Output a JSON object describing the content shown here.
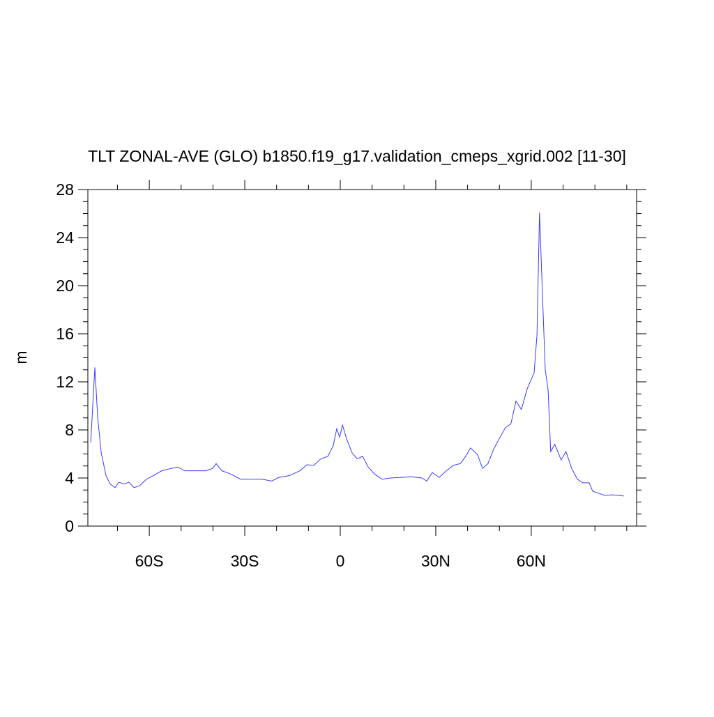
{
  "chart_data": {
    "type": "line",
    "title": "TLT ZONAL-AVE (GLO) b1850.f19_g17.validation_cmeps_xgrid.002 [11-30]",
    "y_label": "m",
    "x": [
      -78.4,
      -77.1,
      -76.2,
      -75.1,
      -73.6,
      -72.3,
      -70.7,
      -69.6,
      -67.9,
      -66.4,
      -64.8,
      -63.1,
      -60.9,
      -58.7,
      -56.1,
      -53.9,
      -51.0,
      -48.8,
      -45.5,
      -42.3,
      -40.1,
      -39.0,
      -37.2,
      -34.6,
      -31.3,
      -28.0,
      -24.7,
      -21.5,
      -19.3,
      -16.0,
      -12.7,
      -10.5,
      -8.3,
      -6.1,
      -3.9,
      -2.2,
      -1.1,
      -0.2,
      0.7,
      2.0,
      3.7,
      5.3,
      7.0,
      8.8,
      10.7,
      13.1,
      15.8,
      19.1,
      22.3,
      25.6,
      27.2,
      28.9,
      31.1,
      33.3,
      35.5,
      37.7,
      39.4,
      40.9,
      43.1,
      44.7,
      46.4,
      48.2,
      49.9,
      51.9,
      53.6,
      55.2,
      56.9,
      58.7,
      60.0,
      60.9,
      61.8,
      62.6,
      63.5,
      64.4,
      65.3,
      66.1,
      67.4,
      69.4,
      70.9,
      72.7,
      74.5,
      76.2,
      78.2,
      79.3,
      81.5,
      83.2,
      85.4,
      89.1
    ],
    "series": [
      {
        "color": "#3a3aff",
        "values": [
          6.96,
          13.2,
          9.0,
          6.1,
          4.2,
          3.5,
          3.2,
          3.65,
          3.5,
          3.65,
          3.2,
          3.35,
          3.9,
          4.2,
          4.6,
          4.75,
          4.9,
          4.6,
          4.6,
          4.6,
          4.8,
          5.2,
          4.6,
          4.35,
          3.9,
          3.9,
          3.9,
          3.75,
          4.05,
          4.2,
          4.6,
          5.1,
          5.05,
          5.6,
          5.8,
          6.7,
          8.1,
          7.4,
          8.4,
          7.25,
          6.1,
          5.6,
          5.8,
          4.9,
          4.35,
          3.9,
          4.0,
          4.05,
          4.1,
          4.0,
          3.75,
          4.45,
          4.05,
          4.6,
          5.05,
          5.2,
          5.8,
          6.5,
          5.95,
          4.8,
          5.2,
          6.4,
          7.25,
          8.2,
          8.5,
          10.4,
          9.7,
          11.4,
          12.2,
          12.75,
          15.9,
          26.1,
          19.4,
          13.0,
          11.3,
          6.2,
          6.8,
          5.5,
          6.2,
          4.8,
          3.9,
          3.6,
          3.6,
          2.9,
          2.7,
          2.55,
          2.6,
          2.5
        ]
      }
    ],
    "xlim": [
      -79.3,
      93.1
    ],
    "xticks": [
      {
        "value": -60,
        "label": "60S"
      },
      {
        "value": -30,
        "label": "30S"
      },
      0,
      {
        "value": 30,
        "label": "30N"
      },
      {
        "value": 60,
        "label": "60N"
      }
    ],
    "ylim": [
      0,
      28
    ],
    "yticks": [
      0,
      4,
      8,
      12,
      16,
      20,
      24,
      28
    ]
  }
}
